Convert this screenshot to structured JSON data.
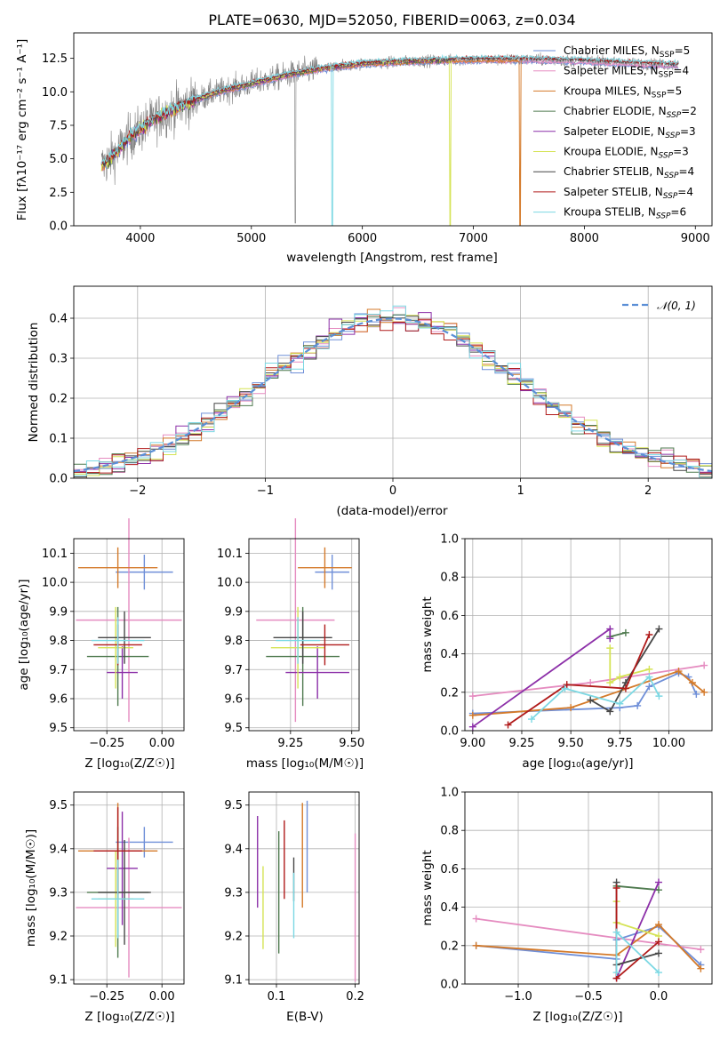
{
  "chart_data": [
    {
      "type": "line",
      "title": "PLATE=0630, MJD=52050, FIBERID=0063, z=0.034",
      "xlabel": "wavelength [Angstrom, rest frame]",
      "ylabel": "Flux [fλ10⁻¹⁷ erg cm⁻² s⁻¹ A⁻¹]",
      "xlim": [
        3400,
        9150
      ],
      "ylim": [
        0,
        14.4
      ],
      "xticks": [
        "4000",
        "5000",
        "6000",
        "7000",
        "8000",
        "9000"
      ],
      "yticks": [
        "0.0",
        "2.5",
        "5.0",
        "7.5",
        "10.0",
        "12.5"
      ],
      "grid": false,
      "legend_position": "top-right",
      "data_series": {
        "name": "data",
        "color": "#808080"
      },
      "continuum_x": [
        3650,
        3700,
        3800,
        3900,
        4000,
        4100,
        4200,
        4300,
        4400,
        4500,
        4700,
        5000,
        5300,
        5600,
        6000,
        6500,
        7000,
        7500,
        8000,
        8500,
        8850
      ],
      "continuum_y": [
        4.5,
        4.8,
        5.6,
        6.6,
        7.2,
        7.8,
        8.3,
        8.7,
        9.0,
        9.4,
        10.0,
        10.6,
        11.2,
        11.7,
        12.1,
        12.3,
        12.4,
        12.4,
        12.3,
        12.1,
        12.0
      ],
      "series": [
        {
          "name": "Chabrier MILES",
          "nssp": "5",
          "color": "#6f8fd8",
          "end": 8850,
          "drop": null
        },
        {
          "name": "Salpeter MILES",
          "nssp": "4",
          "color": "#e58cc0",
          "end": 8850,
          "drop": null
        },
        {
          "name": "Kroupa MILES",
          "nssp": "5",
          "color": "#d47a2a",
          "end": 7430,
          "drop": 7420
        },
        {
          "name": "Chabrier ELODIE",
          "nssp": "2",
          "color": "#4f7a4f",
          "end": 6800,
          "drop": null
        },
        {
          "name": "Salpeter ELODIE",
          "nssp": "3",
          "color": "#8c2fa8",
          "end": 6800,
          "drop": null
        },
        {
          "name": "Kroupa ELODIE",
          "nssp": "3",
          "color": "#d5e355",
          "end": 6800,
          "drop": 6790
        },
        {
          "name": "Chabrier STELIB",
          "nssp": "4",
          "color": "#474747",
          "end": 8850,
          "drop": null
        },
        {
          "name": "Salpeter STELIB",
          "nssp": "4",
          "color": "#b01a1a",
          "end": 8850,
          "drop": null
        },
        {
          "name": "Kroupa STELIB",
          "nssp": "6",
          "color": "#7cd8e3",
          "end": 8850,
          "drop": 5730
        }
      ]
    },
    {
      "type": "line",
      "xlabel": "(data-model)/error",
      "ylabel": "Normed distribution",
      "xlim": [
        -2.5,
        2.5
      ],
      "ylim": [
        0,
        0.48
      ],
      "xticks": [
        "−2",
        "−1",
        "0",
        "1",
        "2"
      ],
      "yticks": [
        "0.0",
        "0.1",
        "0.2",
        "0.3",
        "0.4"
      ],
      "grid": true,
      "legend_position": "top-right",
      "normal_label": "𝒩(0, 1)",
      "normal_color": "#5b8fd6",
      "bin_width": 0.1
    },
    {
      "type": "scatter",
      "xlabel": "Z [log₁₀(Z/Z☉)]",
      "ylabel": "age  [log₁₀(age/yr)]",
      "xlim": [
        -0.4,
        0.1
      ],
      "ylim": [
        9.49,
        10.15
      ],
      "xticks": [
        "−0.25",
        "0.00"
      ],
      "yticks": [
        "9.5",
        "9.6",
        "9.7",
        "9.8",
        "9.9",
        "10.0",
        "10.1"
      ],
      "grid": true,
      "points": [
        {
          "x": -0.08,
          "y": 10.035,
          "xerr": 0.13,
          "yerr": 0.06,
          "color": "#6f8fd8"
        },
        {
          "x": -0.15,
          "y": 9.87,
          "xerr": 0.24,
          "yerr": 0.35,
          "color": "#e58cc0"
        },
        {
          "x": -0.2,
          "y": 10.05,
          "xerr": 0.18,
          "yerr": 0.07,
          "color": "#d47a2a"
        },
        {
          "x": -0.2,
          "y": 9.745,
          "xerr": 0.14,
          "yerr": 0.17,
          "color": "#4f7a4f"
        },
        {
          "x": -0.18,
          "y": 9.69,
          "xerr": 0.07,
          "yerr": 0.09,
          "color": "#8c2fa8"
        },
        {
          "x": -0.21,
          "y": 9.775,
          "xerr": 0.08,
          "yerr": 0.14,
          "color": "#d5e355"
        },
        {
          "x": -0.17,
          "y": 9.81,
          "xerr": 0.12,
          "yerr": 0.09,
          "color": "#474747"
        },
        {
          "x": -0.2,
          "y": 9.785,
          "xerr": 0.11,
          "yerr": 0.07,
          "color": "#b01a1a"
        },
        {
          "x": -0.2,
          "y": 9.8,
          "xerr": 0.12,
          "yerr": 0.08,
          "color": "#7cd8e3"
        }
      ]
    },
    {
      "type": "scatter",
      "xlabel": "mass [log₁₀(M/M☉)]",
      "xlim": [
        9.08,
        9.53
      ],
      "ylim": [
        9.49,
        10.15
      ],
      "xticks": [
        "9.25",
        "9.50"
      ],
      "yticks": [
        "9.5",
        "9.6",
        "9.7",
        "9.8",
        "9.9",
        "10.0",
        "10.1"
      ],
      "grid": true,
      "points": [
        {
          "x": 9.42,
          "y": 10.035,
          "xerr": 0.07,
          "yerr": 0.06,
          "color": "#6f8fd8"
        },
        {
          "x": 9.27,
          "y": 9.87,
          "xerr": 0.16,
          "yerr": 0.35,
          "color": "#e58cc0"
        },
        {
          "x": 9.39,
          "y": 10.05,
          "xerr": 0.11,
          "yerr": 0.07,
          "color": "#d47a2a"
        },
        {
          "x": 9.3,
          "y": 9.745,
          "xerr": 0.15,
          "yerr": 0.17,
          "color": "#4f7a4f"
        },
        {
          "x": 9.36,
          "y": 9.69,
          "xerr": 0.13,
          "yerr": 0.09,
          "color": "#8c2fa8"
        },
        {
          "x": 9.28,
          "y": 9.775,
          "xerr": 0.11,
          "yerr": 0.14,
          "color": "#d5e355"
        },
        {
          "x": 9.3,
          "y": 9.81,
          "xerr": 0.12,
          "yerr": 0.09,
          "color": "#474747"
        },
        {
          "x": 9.39,
          "y": 9.785,
          "xerr": 0.1,
          "yerr": 0.07,
          "color": "#b01a1a"
        },
        {
          "x": 9.28,
          "y": 9.8,
          "xerr": 0.09,
          "yerr": 0.08,
          "color": "#7cd8e3"
        }
      ]
    },
    {
      "type": "line",
      "xlabel": "age  [log₁₀(age/yr)]",
      "ylabel": "mass weight",
      "xlim": [
        8.96,
        10.22
      ],
      "ylim": [
        0,
        1
      ],
      "xticks": [
        "9.00",
        "9.25",
        "9.50",
        "9.75",
        "10.00"
      ],
      "yticks": [
        "0.0",
        "0.2",
        "0.4",
        "0.6",
        "0.8",
        "1.0"
      ],
      "grid": true,
      "series": [
        {
          "color": "#6f8fd8",
          "x": [
            9.0,
            9.75,
            9.84,
            9.9,
            10.05,
            10.1,
            10.14
          ],
          "y": [
            0.09,
            0.12,
            0.13,
            0.23,
            0.3,
            0.28,
            0.19
          ]
        },
        {
          "color": "#e58cc0",
          "x": [
            9.0,
            9.6,
            10.18
          ],
          "y": [
            0.18,
            0.25,
            0.34
          ]
        },
        {
          "color": "#d47a2a",
          "x": [
            9.0,
            9.5,
            10.05,
            10.12,
            10.18
          ],
          "y": [
            0.08,
            0.12,
            0.31,
            0.25,
            0.2
          ]
        },
        {
          "color": "#4f7a4f",
          "x": [
            9.7,
            9.78
          ],
          "y": [
            0.49,
            0.51
          ]
        },
        {
          "color": "#8c2fa8",
          "x": [
            9.0,
            9.7,
            9.7
          ],
          "y": [
            0.02,
            0.53,
            0.48
          ]
        },
        {
          "color": "#d5e355",
          "x": [
            9.7,
            9.7,
            9.75,
            9.9
          ],
          "y": [
            0.43,
            0.25,
            0.28,
            0.32
          ]
        },
        {
          "color": "#474747",
          "x": [
            9.6,
            9.7,
            9.78,
            9.95
          ],
          "y": [
            0.16,
            0.1,
            0.25,
            0.53
          ]
        },
        {
          "color": "#b01a1a",
          "x": [
            9.18,
            9.48,
            9.78,
            9.9
          ],
          "y": [
            0.03,
            0.24,
            0.22,
            0.5
          ]
        },
        {
          "color": "#7cd8e3",
          "x": [
            9.3,
            9.47,
            9.75,
            9.9,
            9.95
          ],
          "y": [
            0.06,
            0.22,
            0.14,
            0.28,
            0.18
          ]
        }
      ]
    },
    {
      "type": "scatter",
      "xlabel": "Z [log₁₀(Z/Z☉)]",
      "ylabel": "mass [log₁₀(M/M☉)]",
      "xlim": [
        -0.4,
        0.1
      ],
      "ylim": [
        9.09,
        9.53
      ],
      "xticks": [
        "−0.25",
        "0.00"
      ],
      "yticks": [
        "9.1",
        "9.2",
        "9.3",
        "9.4",
        "9.5"
      ],
      "grid": true,
      "points": [
        {
          "x": -0.08,
          "y": 9.415,
          "xerr": 0.13,
          "yerr": 0.035,
          "color": "#6f8fd8"
        },
        {
          "x": -0.15,
          "y": 9.265,
          "xerr": 0.24,
          "yerr": 0.16,
          "color": "#e58cc0"
        },
        {
          "x": -0.2,
          "y": 9.395,
          "xerr": 0.18,
          "yerr": 0.11,
          "color": "#d47a2a"
        },
        {
          "x": -0.2,
          "y": 9.3,
          "xerr": 0.14,
          "yerr": 0.15,
          "color": "#4f7a4f"
        },
        {
          "x": -0.18,
          "y": 9.355,
          "xerr": 0.07,
          "yerr": 0.13,
          "color": "#8c2fa8"
        },
        {
          "x": -0.21,
          "y": 9.285,
          "xerr": 0.08,
          "yerr": 0.11,
          "color": "#d5e355"
        },
        {
          "x": -0.17,
          "y": 9.3,
          "xerr": 0.12,
          "yerr": 0.12,
          "color": "#474747"
        },
        {
          "x": -0.2,
          "y": 9.395,
          "xerr": 0.11,
          "yerr": 0.1,
          "color": "#b01a1a"
        },
        {
          "x": -0.2,
          "y": 9.285,
          "xerr": 0.12,
          "yerr": 0.09,
          "color": "#7cd8e3"
        }
      ]
    },
    {
      "type": "scatter",
      "xlabel": "E(B-V)",
      "xlim": [
        0.065,
        0.205
      ],
      "ylim": [
        9.09,
        9.53
      ],
      "xticks": [
        "0.1",
        "0.2"
      ],
      "yticks": [
        "9.1",
        "9.2",
        "9.3",
        "9.4",
        "9.5"
      ],
      "grid": true,
      "points": [
        {
          "x": 0.139,
          "y": 9.405,
          "yerr": 0.105,
          "color": "#6f8fd8"
        },
        {
          "x": 0.2,
          "y": 9.265,
          "yerr": 0.17,
          "color": "#e58cc0"
        },
        {
          "x": 0.133,
          "y": 9.385,
          "yerr": 0.12,
          "color": "#d47a2a"
        },
        {
          "x": 0.103,
          "y": 9.3,
          "yerr": 0.14,
          "color": "#4f7a4f"
        },
        {
          "x": 0.076,
          "y": 9.37,
          "yerr": 0.105,
          "color": "#8c2fa8"
        },
        {
          "x": 0.083,
          "y": 9.265,
          "yerr": 0.095,
          "color": "#d5e355"
        },
        {
          "x": 0.122,
          "y": 9.33,
          "yerr": 0.05,
          "color": "#474747"
        },
        {
          "x": 0.11,
          "y": 9.375,
          "yerr": 0.09,
          "color": "#b01a1a"
        },
        {
          "x": 0.122,
          "y": 9.27,
          "yerr": 0.075,
          "color": "#7cd8e3"
        }
      ]
    },
    {
      "type": "line",
      "xlabel": "Z [log₁₀(Z/Z☉)]",
      "ylabel": "mass weight",
      "xlim": [
        -1.38,
        0.38
      ],
      "ylim": [
        0,
        1
      ],
      "xticks": [
        "−1.0",
        "−0.5",
        "0.0"
      ],
      "yticks": [
        "0.0",
        "0.2",
        "0.4",
        "0.6",
        "0.8",
        "1.0"
      ],
      "grid": true,
      "series": [
        {
          "color": "#6f8fd8",
          "x": [
            -1.3,
            -0.3,
            -0.3,
            0.0,
            0.3
          ],
          "y": [
            0.2,
            0.13,
            0.23,
            0.3,
            0.1
          ]
        },
        {
          "color": "#e58cc0",
          "x": [
            -1.3,
            0.3
          ],
          "y": [
            0.34,
            0.18
          ]
        },
        {
          "color": "#d47a2a",
          "x": [
            -1.3,
            -0.3,
            0.0,
            0.3
          ],
          "y": [
            0.2,
            0.15,
            0.31,
            0.08
          ]
        },
        {
          "color": "#4f7a4f",
          "x": [
            -0.3,
            0.0
          ],
          "y": [
            0.51,
            0.49
          ]
        },
        {
          "color": "#8c2fa8",
          "x": [
            -0.3,
            0.0
          ],
          "y": [
            0.03,
            0.53
          ]
        },
        {
          "color": "#d5e355",
          "x": [
            -0.3,
            -0.3,
            0.0
          ],
          "y": [
            0.43,
            0.32,
            0.25
          ]
        },
        {
          "color": "#474747",
          "x": [
            -0.3,
            -0.3,
            0.0
          ],
          "y": [
            0.53,
            0.1,
            0.16
          ]
        },
        {
          "color": "#b01a1a",
          "x": [
            -0.3,
            -0.3,
            0.0
          ],
          "y": [
            0.5,
            0.03,
            0.22
          ]
        },
        {
          "color": "#7cd8e3",
          "x": [
            -0.3,
            -0.3,
            0.0
          ],
          "y": [
            0.06,
            0.27,
            0.06
          ]
        }
      ]
    }
  ]
}
